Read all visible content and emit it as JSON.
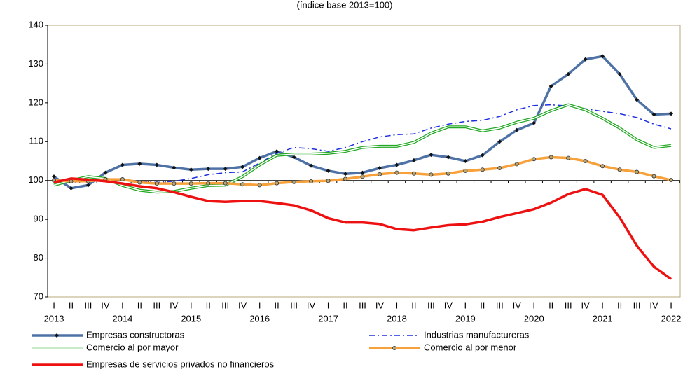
{
  "chart_data": {
    "type": "line",
    "subtitle": "(índice base 2013=100)",
    "categories": [
      "I",
      "II",
      "III",
      "IV",
      "I",
      "II",
      "III",
      "IV",
      "I",
      "II",
      "III",
      "IV",
      "I",
      "II",
      "III",
      "IV",
      "I",
      "II",
      "III",
      "IV",
      "I",
      "II",
      "III",
      "IV",
      "I",
      "II",
      "III",
      "IV",
      "I",
      "II",
      "III",
      "IV",
      "I",
      "II",
      "III",
      "IV",
      "I"
    ],
    "year_labels": [
      "2013",
      "2014",
      "2015",
      "2016",
      "2017",
      "2018",
      "2019",
      "2020",
      "2021",
      "2022"
    ],
    "ylim": [
      70,
      140
    ],
    "yticks": [
      70,
      80,
      90,
      100,
      110,
      120,
      130,
      140
    ],
    "legend": "bottom",
    "series": [
      {
        "name": "Empresas constructoras",
        "color": "#4f72a6",
        "style": "diamond",
        "values": [
          101,
          98,
          98.8,
          102,
          104,
          104.3,
          104,
          103.3,
          102.8,
          103,
          103,
          103.5,
          105.8,
          107.5,
          106,
          103.8,
          102.5,
          101.7,
          102,
          103.2,
          104,
          105.2,
          106.6,
          106,
          105,
          106.5,
          110,
          113,
          114.8,
          124.3,
          127.4,
          131.2,
          132,
          127.4,
          120.8,
          117,
          117.2
        ]
      },
      {
        "name": "Industrias manufactureras",
        "color": "#1f2fe0",
        "style": "dashdot",
        "values": [
          100,
          99.5,
          99.8,
          100.5,
          100.3,
          99.8,
          99.5,
          99.8,
          100.5,
          101.5,
          102,
          102.2,
          104.5,
          107,
          108.5,
          108.2,
          107.5,
          108.5,
          110,
          111.2,
          111.8,
          112,
          113.5,
          114.5,
          115.2,
          115.5,
          116.5,
          118.2,
          119.3,
          119.5,
          119.2,
          118.5,
          117.8,
          117.2,
          116.2,
          114.5,
          113.3
        ]
      },
      {
        "name": "Comercio al por mayor",
        "color": "#22a822",
        "style": "double",
        "values": [
          98.8,
          100,
          101,
          100.5,
          98.7,
          97.5,
          97,
          97.2,
          98,
          98.7,
          98.8,
          101,
          104,
          106.5,
          106.8,
          106.8,
          107,
          107.5,
          108.5,
          108.8,
          108.8,
          109.8,
          112.2,
          113.8,
          113.8,
          112.8,
          113.5,
          115,
          116,
          118,
          119.5,
          118.2,
          116,
          113.5,
          110.5,
          108.5,
          109
        ]
      },
      {
        "name": "Comercio al por menor",
        "color": "#f7a13c",
        "style": "circle",
        "values": [
          100,
          99.8,
          99.8,
          100.3,
          100.3,
          99.5,
          99.2,
          99.2,
          99.2,
          99.3,
          99.3,
          99,
          98.8,
          99.3,
          99.6,
          99.8,
          99.9,
          100.4,
          101,
          101.6,
          102,
          101.8,
          101.5,
          101.8,
          102.5,
          102.8,
          103.2,
          104.2,
          105.5,
          106,
          105.8,
          105,
          103.7,
          102.8,
          102.2,
          101.1,
          100.1
        ]
      },
      {
        "name": "Empresas de servicios privados no financieros",
        "color": "#ee1111",
        "style": "solid",
        "values": [
          99.5,
          100.5,
          100.2,
          99.8,
          99.2,
          98.5,
          98,
          97,
          95.8,
          94.7,
          94.5,
          94.7,
          94.7,
          94.2,
          93.6,
          92.3,
          90.3,
          89.2,
          89.2,
          88.8,
          87.5,
          87.2,
          87.9,
          88.5,
          88.7,
          89.4,
          90.6,
          91.6,
          92.6,
          94.3,
          96.5,
          97.8,
          96.3,
          90.5,
          83.2,
          77.8,
          74.6
        ]
      }
    ]
  }
}
